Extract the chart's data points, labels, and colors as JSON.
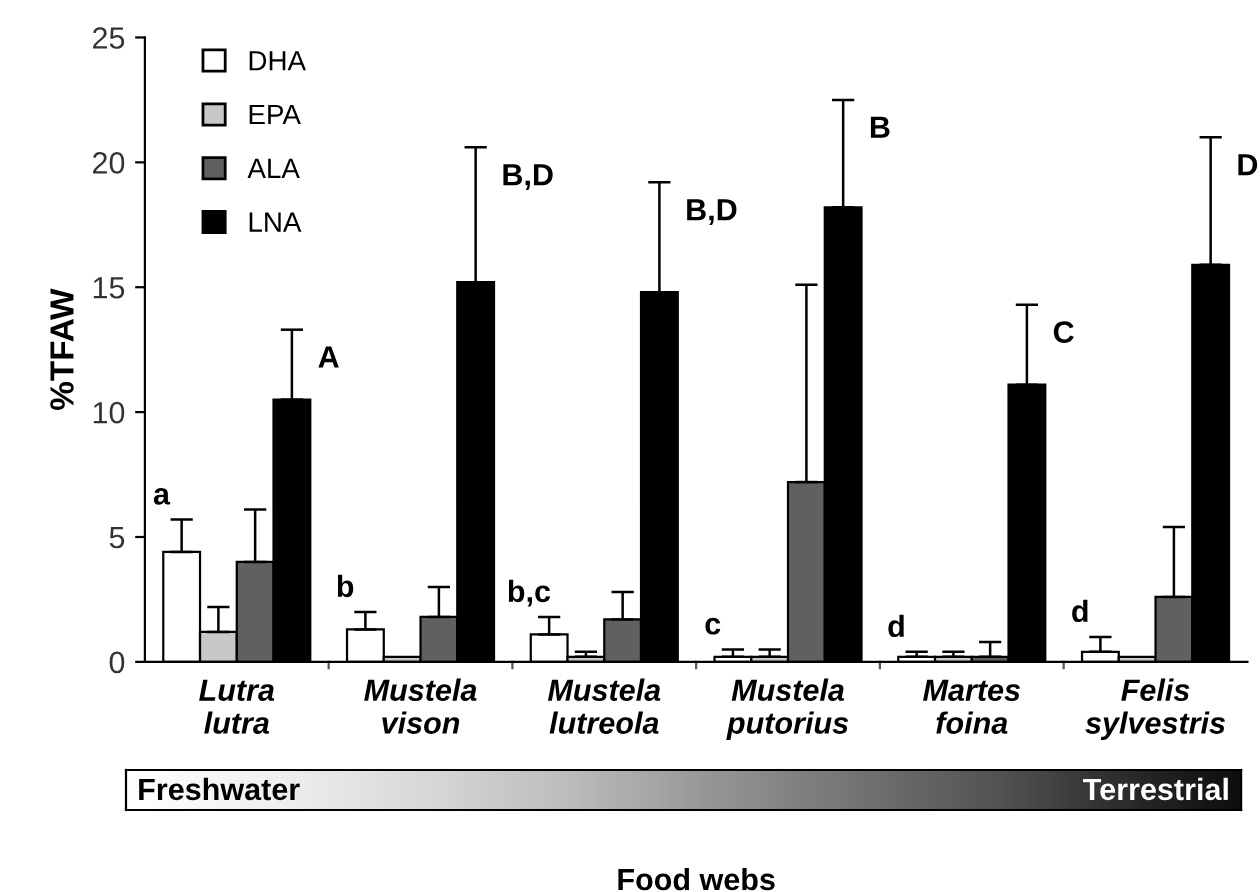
{
  "chart_data": {
    "type": "bar",
    "ylabel": "%TFAW",
    "xlabel": "Food webs",
    "categories": [
      "Lutra\nlutra",
      "Mustela\nvison",
      "Mustela\nlutreola",
      "Mustela\nputorius",
      "Martes\nfoina",
      "Felis\nsylvestris"
    ],
    "series": [
      {
        "name": "DHA",
        "color": "#ffffff",
        "values": [
          4.4,
          1.3,
          1.1,
          0.2,
          0.2,
          0.4
        ],
        "errors": [
          [
            4.4,
            5.7
          ],
          [
            1.3,
            2.0
          ],
          [
            1.1,
            1.8
          ],
          [
            0.2,
            0.5
          ],
          [
            0.2,
            0.4
          ],
          [
            0.4,
            1.0
          ]
        ]
      },
      {
        "name": "EPA",
        "color": "#c8c8c8",
        "values": [
          1.2,
          0.2,
          0.2,
          0.2,
          0.2,
          0.2
        ],
        "errors": [
          [
            1.2,
            2.2
          ],
          null,
          [
            0.2,
            0.4
          ],
          [
            0.2,
            0.5
          ],
          [
            0.2,
            0.4
          ],
          null
        ]
      },
      {
        "name": "ALA",
        "color": "#606060",
        "values": [
          4.0,
          1.8,
          1.7,
          7.2,
          0.2,
          2.6
        ],
        "errors": [
          [
            4.0,
            6.1
          ],
          [
            1.8,
            3.0
          ],
          [
            1.7,
            2.8
          ],
          [
            7.2,
            15.1
          ],
          [
            0.2,
            0.8
          ],
          [
            2.6,
            5.4
          ]
        ]
      },
      {
        "name": "LNA",
        "color": "#000000",
        "values": [
          10.5,
          15.2,
          14.8,
          18.2,
          11.1,
          15.9
        ],
        "errors": [
          [
            10.5,
            13.3
          ],
          [
            15.2,
            20.6
          ],
          [
            14.8,
            19.2
          ],
          [
            18.2,
            22.5
          ],
          [
            11.1,
            14.3
          ],
          [
            15.9,
            21.0
          ]
        ]
      }
    ],
    "ylim": [
      0,
      25
    ],
    "yticks": [
      0,
      5,
      10,
      15,
      20,
      25
    ],
    "legend": "top left",
    "annotations": [
      "a",
      "b",
      "b,c",
      "c",
      "d",
      "d",
      "A",
      "B,D",
      "B,D",
      "B",
      "C",
      "D",
      "Freshwater",
      "Terrestrial"
    ]
  }
}
